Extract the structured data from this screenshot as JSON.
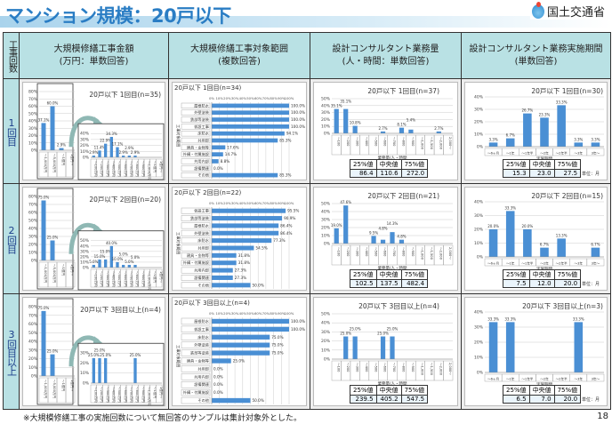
{
  "title": "マンション規模：20戸以下",
  "logo_text": "国土交通省",
  "header": {
    "row_label": "工事回数",
    "columns": [
      {
        "line1": "大規模修繕工事金額",
        "line2": "(万円：単数回答)"
      },
      {
        "line1": "大規模修繕工事対象範囲",
        "line2": "(複数回答)"
      },
      {
        "line1": "設計コンサルタント業務量",
        "line2": "(人・時間：単数回答)"
      },
      {
        "line1": "設計コンサルタント業務実施期間",
        "line2": "(単数回答)"
      }
    ]
  },
  "rows": [
    {
      "label": "1回目",
      "amount": {
        "title": "20戸以下 1回目(n=35)",
        "main": {
          "categories": [
            "～1,000万円",
            "～5,000万円",
            "～1億円",
            "1億円～"
          ],
          "values": [
            37.1,
            60.0,
            2.9,
            0
          ],
          "labels": [
            "37.1%",
            "60.0%",
            "2.9%",
            ""
          ],
          "ymax": 80
        },
        "detail": {
          "categories": [
            "～100万円",
            "～200万円",
            "～300万円",
            "～400万円",
            "～500万円",
            "～600万円",
            "～700万円",
            "～800万円",
            "～900万円",
            "～1,000万円",
            "～1億円",
            "1億円～"
          ],
          "values": [
            2.9,
            11.4,
            22.9,
            34.3,
            17.1,
            2.9,
            2.9,
            2.9,
            0,
            0,
            0,
            0
          ],
          "labels": [
            "2.9%",
            "11.4%",
            "22.9%",
            "34.3%",
            "17.1%",
            "2.9%",
            "2.9%",
            "2.9%",
            "",
            "",
            "",
            ""
          ],
          "ymax": 40
        }
      },
      "scope": {
        "title": "20戸以下 1回目(n=34)",
        "categories": [
          "屋根防水",
          "外壁塗装",
          "鉄部等塗装",
          "仮設工事",
          "床防水",
          "共用部",
          "建具・金物等",
          "外構・付属施設",
          "共用内部",
          "設備関連",
          "その他"
        ],
        "values": [
          100,
          100,
          100,
          100,
          94.1,
          85.3,
          17.6,
          14.7,
          8.8,
          0.0,
          85.3
        ],
        "labels": [
          "100.0%",
          "100.0%",
          "100.0%",
          "100.0%",
          "94.1%",
          "85.3%",
          "17.6%",
          "14.7%",
          "8.8%",
          "0.0%",
          "85.3%"
        ]
      },
      "workload": {
        "title": "20戸以下 1回目(n=37)",
        "xlabel": "業務量/人・時間",
        "ymax": 50,
        "categories": [
          "～100",
          "～200",
          "～300",
          "～400",
          "～500",
          "～600",
          "～700",
          "～800",
          "～900",
          "～1,000",
          "～1,500",
          "～2,000",
          "2,000～"
        ],
        "values": [
          35.1,
          35.1,
          10.8,
          0,
          0,
          2.7,
          0,
          8.1,
          5.4,
          0,
          0,
          2.7,
          0
        ],
        "labels": [
          "35.1%",
          "35.1%",
          "10.8%",
          "",
          "",
          "2.7%",
          "",
          "8.1%",
          "5.4%",
          "",
          "",
          "2.7%",
          ""
        ],
        "stats": {
          "headers": [
            "25%値",
            "中央値",
            "75%値"
          ],
          "values": [
            "86.4",
            "110.6",
            "272.0"
          ]
        }
      },
      "period": {
        "title": "20戸以下 1回目(n=30)",
        "xlabel": "実施期間",
        "ymax": 40,
        "categories": [
          "～6ヶ月",
          "～1年",
          "～1年半",
          "～2年",
          "～2年半",
          "～3年",
          "3年～"
        ],
        "values": [
          3.3,
          6.7,
          26.7,
          23.3,
          33.3,
          3.3,
          3.3
        ],
        "labels": [
          "3.3%",
          "6.7%",
          "26.7%",
          "23.3%",
          "33.3%",
          "3.3%",
          "3.3%"
        ],
        "stats": {
          "headers": [
            "25%値",
            "中央値",
            "75%値"
          ],
          "values": [
            "15.3",
            "23.0",
            "27.5"
          ]
        },
        "unit": "単位：月"
      }
    },
    {
      "label": "2回目",
      "amount": {
        "title": "20戸以下 2回目(n=20)",
        "main": {
          "categories": [
            "～1,000万円",
            "～5,000万円",
            "～1億円",
            "1億円～"
          ],
          "values": [
            75.0,
            25.0,
            0,
            0
          ],
          "labels": [
            "75.0%",
            "25.0%",
            "",
            ""
          ],
          "ymax": 80
        },
        "detail": {
          "categories": [
            "～100万円",
            "～200万円",
            "～300万円",
            "～400万円",
            "～500万円",
            "～600万円",
            "～700万円",
            "～800万円",
            "～900万円",
            "～1,000万円",
            "～1億円",
            "1億円～"
          ],
          "values": [
            5,
            15,
            15,
            40,
            10,
            5,
            5,
            5,
            0,
            0,
            0,
            0
          ],
          "labels": [
            "5.0%",
            "15.0%",
            "15.0%",
            "40.0%",
            "10.0%",
            "5.0%",
            "5.0%",
            "5.0%",
            "",
            "",
            "",
            ""
          ],
          "ymax": 50
        }
      },
      "scope": {
        "title": "20戸以下 2回目(n=22)",
        "categories": [
          "仮設工事",
          "鉄部等塗装",
          "屋根防水",
          "外壁塗装",
          "床防水",
          "共用部",
          "建具・金物等",
          "外構・付属施設",
          "共用内部",
          "設備関連",
          "その他"
        ],
        "values": [
          95.5,
          90.9,
          86.4,
          86.4,
          77.3,
          54.5,
          31.8,
          31.8,
          27.3,
          27.3,
          50.0
        ],
        "labels": [
          "95.5%",
          "90.9%",
          "86.4%",
          "86.4%",
          "77.3%",
          "54.5%",
          "31.8%",
          "31.8%",
          "27.3%",
          "27.3%",
          "50.0%"
        ]
      },
      "workload": {
        "title": "20戸以下 2回目(n=21)",
        "xlabel": "業務量/人・時間",
        "ymax": 50,
        "categories": [
          "～100",
          "～200",
          "～300",
          "～400",
          "～500",
          "～600",
          "～700",
          "～800",
          "～900",
          "～1,000",
          "～1,500",
          "～2,000",
          "2,000～"
        ],
        "values": [
          19.0,
          47.6,
          0,
          0,
          9.5,
          4.8,
          14.3,
          4.8,
          0,
          0,
          0,
          0,
          0
        ],
        "labels": [
          "19.0%",
          "47.6%",
          "",
          "",
          "9.5%",
          "4.8%",
          "14.3%",
          "4.8%",
          "",
          "",
          "",
          "",
          ""
        ],
        "stats": {
          "headers": [
            "25%値",
            "中央値",
            "75%値"
          ],
          "values": [
            "102.5",
            "137.5",
            "482.4"
          ]
        }
      },
      "period": {
        "title": "20戸以下 2回目(n=15)",
        "xlabel": "実施期間",
        "ymax": 40,
        "categories": [
          "～6ヶ月",
          "～1年",
          "～1年半",
          "～2年",
          "～2年半",
          "～3年",
          "3年～"
        ],
        "values": [
          20.0,
          33.3,
          20.0,
          6.7,
          13.3,
          0,
          6.7
        ],
        "labels": [
          "20.0%",
          "33.3%",
          "20.0%",
          "6.7%",
          "13.3%",
          "",
          "6.7%"
        ],
        "stats": {
          "headers": [
            "25%値",
            "中央値",
            "75%値"
          ],
          "values": [
            "7.5",
            "12.0",
            "20.0"
          ]
        },
        "unit": "単位：月"
      }
    },
    {
      "label": "3回目以上",
      "amount": {
        "title": "20戸以下 3回目以上(n=4)",
        "main": {
          "categories": [
            "～1,000万円",
            "～5,000万円",
            "～1億円",
            "1億円～"
          ],
          "values": [
            75.0,
            25.0,
            0,
            0
          ],
          "labels": [
            "75.0%",
            "25.0%",
            "",
            ""
          ],
          "ymax": 80
        },
        "detail": {
          "categories": [
            "～100万円",
            "～200万円",
            "～300万円",
            "～400万円",
            "～500万円",
            "～600万円",
            "～700万円",
            "～800万円",
            "～900万円",
            "～1,000万円",
            "～1億円",
            "1億円～"
          ],
          "values": [
            25,
            25,
            25,
            0,
            0,
            0,
            0,
            25,
            0,
            0,
            0,
            0
          ],
          "labels": [
            "25.0%",
            "25.0%",
            "25.0%",
            "",
            "",
            "",
            "",
            "25.0%",
            "",
            "",
            "",
            ""
          ],
          "ymax": 30
        }
      },
      "scope": {
        "title": "20戸以下 3回目以上(n=4)",
        "categories": [
          "屋根防水",
          "仮設工事",
          "床防水",
          "外壁塗装",
          "鉄部等塗装",
          "建具・金物等",
          "共用部",
          "共用内部",
          "設備関連",
          "外構・付属施設",
          "その他"
        ],
        "values": [
          100,
          100,
          75,
          75,
          75,
          25,
          0,
          0,
          0,
          0,
          50
        ],
        "labels": [
          "100.0%",
          "100.0%",
          "75.0%",
          "75.0%",
          "75.0%",
          "25.0%",
          "0.0%",
          "0.0%",
          "0.0%",
          "0.0%",
          "50.0%"
        ]
      },
      "workload": {
        "title": "20戸以下 3回目以上(n=4)",
        "xlabel": "業務量/人・時間",
        "ymax": 50,
        "categories": [
          "～100",
          "～200",
          "～300",
          "～400",
          "～500",
          "～600",
          "～700",
          "～800",
          "～900",
          "～1,000",
          "～1,500",
          "～2,000",
          "2,000～"
        ],
        "values": [
          0,
          25,
          25,
          0,
          0,
          25,
          25,
          0,
          0,
          0,
          0,
          0,
          0
        ],
        "labels": [
          "",
          "25.0%",
          "25.0%",
          "",
          "",
          "25.0%",
          "25.0%",
          "",
          "",
          "",
          "",
          "",
          ""
        ],
        "stats": {
          "headers": [
            "25%値",
            "中央値",
            "75%値"
          ],
          "values": [
            "239.5",
            "405.2",
            "547.5"
          ]
        }
      },
      "period": {
        "title": "20戸以下 3回目以上(n=3)",
        "xlabel": "実施期間",
        "ymax": 40,
        "categories": [
          "～6ヶ月",
          "～1年",
          "～1年半",
          "～2年",
          "～2年半",
          "～3年",
          "3年～"
        ],
        "values": [
          33.3,
          33.3,
          0,
          0,
          0,
          33.3,
          0
        ],
        "labels": [
          "33.3%",
          "33.3%",
          "",
          "",
          "",
          "33.3%",
          ""
        ],
        "stats": {
          "headers": [
            "25%値",
            "中央値",
            "75%値"
          ],
          "values": [
            "6.5",
            "7.0",
            "20.0"
          ]
        },
        "unit": "単位：月"
      }
    }
  ],
  "scope_axis_label": "工事対象範囲",
  "footnote": "※大規模修繕工事の実施回数について無回答のサンプルは集計対象外とした。",
  "page_number": "18",
  "colors": {
    "title": "#2a7dc4",
    "bar": "#4a8fd4",
    "header_bg": "#b9e1e4"
  }
}
